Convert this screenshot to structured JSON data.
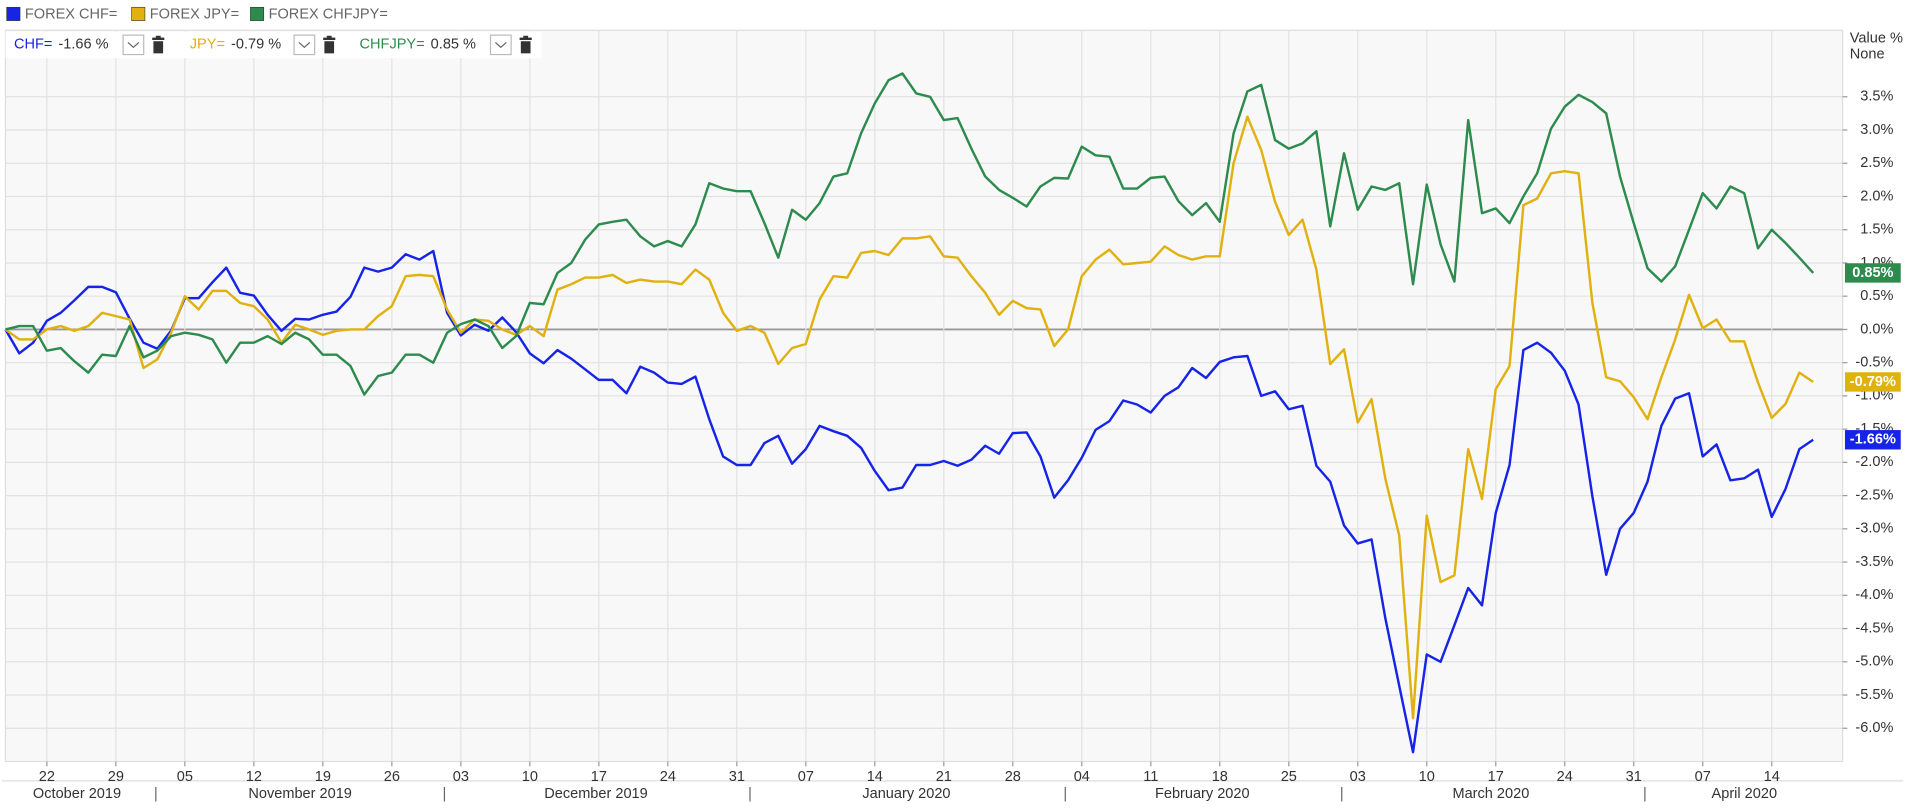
{
  "chart_data": {
    "type": "line",
    "y_axis_title": "Value %",
    "y_axis_mode": "None",
    "ylim": [
      -6.5,
      4.5
    ],
    "yticks": [
      {
        "value": 3.5,
        "label": "3.5%"
      },
      {
        "value": 3.0,
        "label": "3.0%"
      },
      {
        "value": 2.5,
        "label": "2.5%"
      },
      {
        "value": 2.0,
        "label": "2.0%"
      },
      {
        "value": 1.5,
        "label": "1.5%"
      },
      {
        "value": 1.0,
        "label": "1.0%"
      },
      {
        "value": 0.5,
        "label": "0.5%"
      },
      {
        "value": 0,
        "label": "0.0%"
      },
      {
        "value": -0.5,
        "label": "-0.5%"
      },
      {
        "value": -1.0,
        "label": "-1.0%"
      },
      {
        "value": -1.5,
        "label": "-1.5%"
      },
      {
        "value": -2.0,
        "label": "-2.0%"
      },
      {
        "value": -2.5,
        "label": "-2.5%"
      },
      {
        "value": -3.0,
        "label": "-3.0%"
      },
      {
        "value": -3.5,
        "label": "-3.5%"
      },
      {
        "value": -4.0,
        "label": "-4.0%"
      },
      {
        "value": -4.5,
        "label": "-4.5%"
      },
      {
        "value": -5.0,
        "label": "-5.0%"
      },
      {
        "value": -5.5,
        "label": "-5.5%"
      },
      {
        "value": -6.0,
        "label": "-6.0%"
      }
    ],
    "grid": true,
    "categories": [
      null,
      null,
      null,
      "22",
      null,
      null,
      null,
      null,
      "29",
      null,
      null,
      null,
      null,
      "05",
      null,
      null,
      null,
      null,
      "12",
      null,
      null,
      null,
      null,
      "19",
      null,
      null,
      null,
      null,
      "26",
      null,
      null,
      null,
      null,
      "03",
      null,
      null,
      null,
      null,
      "10",
      null,
      null,
      null,
      null,
      "17",
      null,
      null,
      null,
      null,
      "24",
      null,
      null,
      null,
      null,
      "31",
      null,
      null,
      null,
      null,
      "07",
      null,
      null,
      null,
      null,
      "14",
      null,
      null,
      null,
      null,
      "21",
      null,
      null,
      null,
      null,
      "28",
      null,
      null,
      null,
      null,
      "04",
      null,
      null,
      null,
      null,
      "11",
      null,
      null,
      null,
      null,
      "18",
      null,
      null,
      null,
      null,
      "25",
      null,
      null,
      null,
      null,
      "03",
      null,
      null,
      null,
      null,
      "10",
      null,
      null,
      null,
      null,
      "17",
      null,
      null,
      null,
      null,
      "24",
      null,
      null,
      null,
      null,
      "31",
      null,
      null,
      null,
      null,
      "07",
      null,
      null,
      null,
      null,
      "14",
      null,
      null,
      null
    ],
    "month_labels": [
      "October 2019",
      "November 2019",
      "December 2019",
      "January 2020",
      "February 2020",
      "March 2020",
      "April 2020"
    ],
    "series": [
      {
        "name": "FOREX CHF=",
        "short_name": "CHF=",
        "readout": "-1.66 %",
        "end_label": "-1.66%",
        "color": "#1524e6",
        "values": [
          0,
          -0.36,
          -0.2,
          0.13,
          0.25,
          0.44,
          0.64,
          0.64,
          0.56,
          0.16,
          -0.2,
          -0.29,
          -0.02,
          0.47,
          0.47,
          0.71,
          0.93,
          0.55,
          0.51,
          0.22,
          -0.02,
          0.16,
          0.15,
          0.22,
          0.27,
          0.49,
          0.93,
          0.87,
          0.93,
          1.13,
          1.05,
          1.18,
          0.25,
          -0.09,
          0.07,
          -0.02,
          0.18,
          -0.04,
          -0.36,
          -0.51,
          -0.31,
          -0.44,
          -0.6,
          -0.76,
          -0.76,
          -0.96,
          -0.56,
          -0.65,
          -0.8,
          -0.82,
          -0.71,
          -1.35,
          -1.91,
          -2.04,
          -2.04,
          -1.71,
          -1.6,
          -2.02,
          -1.8,
          -1.45,
          -1.53,
          -1.6,
          -1.78,
          -2.13,
          -2.42,
          -2.38,
          -2.04,
          -2.04,
          -1.98,
          -2.05,
          -1.96,
          -1.75,
          -1.87,
          -1.56,
          -1.55,
          -1.91,
          -2.53,
          -2.27,
          -1.93,
          -1.51,
          -1.38,
          -1.07,
          -1.13,
          -1.25,
          -1.0,
          -0.87,
          -0.58,
          -0.73,
          -0.49,
          -0.42,
          -0.4,
          -1.0,
          -0.93,
          -1.2,
          -1.15,
          -2.05,
          -2.29,
          -2.95,
          -3.22,
          -3.16,
          -4.35,
          -5.36,
          -6.36,
          -4.89,
          -5.0,
          -4.45,
          -3.89,
          -4.15,
          -2.76,
          -2.04,
          -0.31,
          -0.2,
          -0.35,
          -0.62,
          -1.13,
          -2.51,
          -3.69,
          -3.0,
          -2.76,
          -2.29,
          -1.45,
          -1.04,
          -0.96,
          -1.91,
          -1.73,
          -2.27,
          -2.24,
          -2.11,
          -2.82,
          -2.4,
          -1.8,
          -1.66
        ]
      },
      {
        "name": "FOREX JPY=",
        "short_name": "JPY=",
        "readout": "-0.79 %",
        "end_label": "-0.79%",
        "color": "#e0b10f",
        "values": [
          0,
          -0.15,
          -0.15,
          0.0,
          0.05,
          -0.02,
          0.05,
          0.25,
          0.2,
          0.15,
          -0.58,
          -0.45,
          -0.05,
          0.5,
          0.3,
          0.58,
          0.58,
          0.4,
          0.35,
          0.15,
          -0.2,
          0.07,
          0.0,
          -0.08,
          -0.02,
          0.0,
          0.0,
          0.2,
          0.35,
          0.8,
          0.82,
          0.8,
          0.3,
          -0.05,
          0.15,
          0.13,
          0.0,
          -0.08,
          0.05,
          -0.1,
          0.6,
          0.68,
          0.78,
          0.78,
          0.82,
          0.7,
          0.75,
          0.72,
          0.72,
          0.68,
          0.9,
          0.75,
          0.25,
          -0.02,
          0.05,
          -0.05,
          -0.52,
          -0.28,
          -0.22,
          0.45,
          0.8,
          0.78,
          1.15,
          1.18,
          1.12,
          1.37,
          1.37,
          1.4,
          1.1,
          1.08,
          0.8,
          0.55,
          0.22,
          0.43,
          0.32,
          0.3,
          -0.25,
          0.0,
          0.8,
          1.05,
          1.2,
          0.98,
          1.0,
          1.02,
          1.25,
          1.12,
          1.05,
          1.1,
          1.1,
          2.5,
          3.2,
          2.7,
          1.92,
          1.42,
          1.65,
          0.9,
          -0.52,
          -0.3,
          -1.4,
          -1.05,
          -2.25,
          -3.1,
          -5.85,
          -2.8,
          -3.8,
          -3.7,
          -1.8,
          -2.55,
          -0.9,
          -0.55,
          1.87,
          1.97,
          2.35,
          2.38,
          2.35,
          0.4,
          -0.72,
          -0.78,
          -1.02,
          -1.35,
          -0.72,
          -0.15,
          0.52,
          0.02,
          0.15,
          -0.18,
          -0.18,
          -0.8,
          -1.33,
          -1.12,
          -0.65,
          -0.79
        ]
      },
      {
        "name": "FOREX CHFJPY=",
        "short_name": "CHFJPY=",
        "readout": "0.85 %",
        "end_label": "0.85%",
        "color": "#2e8b4e",
        "values": [
          0,
          0.05,
          0.05,
          -0.32,
          -0.28,
          -0.48,
          -0.65,
          -0.38,
          -0.4,
          0.05,
          -0.42,
          -0.32,
          -0.1,
          -0.05,
          -0.08,
          -0.15,
          -0.5,
          -0.2,
          -0.2,
          -0.1,
          -0.22,
          -0.05,
          -0.15,
          -0.38,
          -0.38,
          -0.55,
          -0.98,
          -0.7,
          -0.65,
          -0.38,
          -0.38,
          -0.5,
          -0.05,
          0.08,
          0.15,
          0.05,
          -0.28,
          -0.1,
          0.4,
          0.38,
          0.85,
          1.0,
          1.35,
          1.58,
          1.62,
          1.65,
          1.4,
          1.25,
          1.33,
          1.25,
          1.58,
          2.2,
          2.12,
          2.08,
          2.08,
          1.6,
          1.08,
          1.8,
          1.65,
          1.9,
          2.3,
          2.35,
          2.95,
          3.4,
          3.75,
          3.85,
          3.55,
          3.5,
          3.15,
          3.18,
          2.72,
          2.3,
          2.1,
          1.98,
          1.85,
          2.15,
          2.28,
          2.27,
          2.75,
          2.62,
          2.6,
          2.12,
          2.12,
          2.28,
          2.3,
          1.93,
          1.72,
          1.9,
          1.62,
          2.95,
          3.58,
          3.68,
          2.85,
          2.72,
          2.8,
          2.98,
          1.55,
          2.65,
          1.8,
          2.15,
          2.1,
          2.2,
          0.68,
          2.18,
          1.28,
          0.72,
          3.15,
          1.75,
          1.82,
          1.6,
          2.0,
          2.35,
          3.02,
          3.35,
          3.53,
          3.42,
          3.25,
          2.3,
          1.6,
          0.92,
          0.72,
          0.95,
          1.5,
          2.05,
          1.82,
          2.15,
          2.05,
          1.22,
          1.5,
          1.3,
          1.08,
          0.85
        ]
      }
    ]
  }
}
